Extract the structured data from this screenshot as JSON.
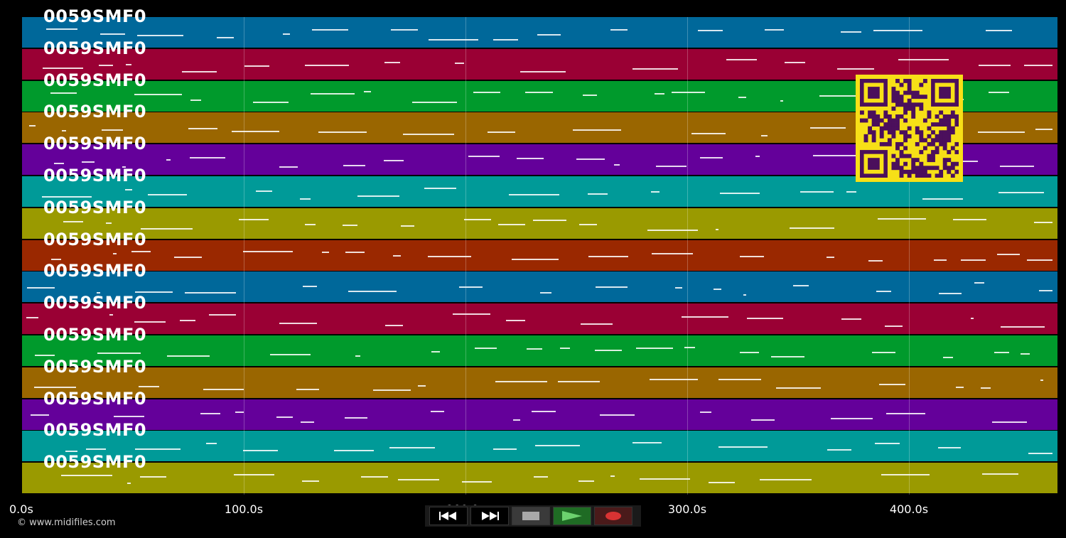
{
  "lanes": [
    {
      "label": "0059SMF0",
      "color": "#00689a"
    },
    {
      "label": "0059SMF0",
      "color": "#9a0034"
    },
    {
      "label": "0059SMF0",
      "color": "#009a2c"
    },
    {
      "label": "0059SMF0",
      "color": "#9a6600"
    },
    {
      "label": "0059SMF0",
      "color": "#64009a"
    },
    {
      "label": "0059SMF0",
      "color": "#009a98"
    },
    {
      "label": "0059SMF0",
      "color": "#9a9a00"
    },
    {
      "label": "0059SMF0",
      "color": "#9a2800"
    },
    {
      "label": "0059SMF0",
      "color": "#00689a"
    },
    {
      "label": "0059SMF0",
      "color": "#9a0034"
    },
    {
      "label": "0059SMF0",
      "color": "#009a2c"
    },
    {
      "label": "0059SMF0",
      "color": "#9a6600"
    },
    {
      "label": "0059SMF0",
      "color": "#64009a"
    },
    {
      "label": "0059SMF0",
      "color": "#009a98"
    },
    {
      "label": "0059SMF0",
      "color": "#9a9a00"
    }
  ],
  "timeline": {
    "ticks": [
      "0.0s",
      "100.0s",
      "200.0s",
      "300.0s",
      "400.0s"
    ],
    "tick_values": [
      0,
      100,
      200,
      300,
      400
    ],
    "max_seconds": 467
  },
  "copyright": "© www.midifiles.com",
  "qr": {
    "fg": "#4b0f5c",
    "bg": "#f7e017"
  },
  "transport": {
    "rewind_icon": "rewind-icon",
    "ffwd_icon": "fast-forward-icon",
    "stop_icon": "stop-icon",
    "play_icon": "play-icon",
    "record_icon": "record-icon"
  }
}
